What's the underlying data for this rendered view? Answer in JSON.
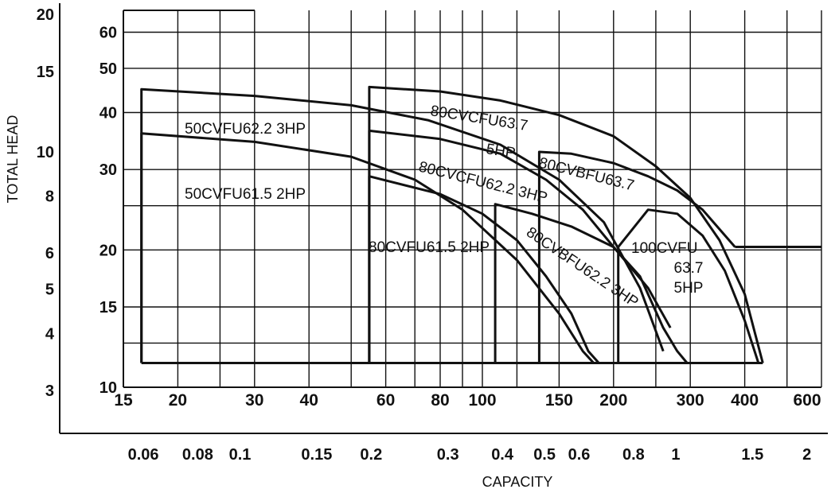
{
  "chart_data": {
    "type": "line",
    "title": "",
    "xlabel": "CAPACITY",
    "ylabel": "TOTAL HEAD",
    "x_scale": "log",
    "y_scale": "log",
    "xlim": [
      15,
      600
    ],
    "ylim": [
      10,
      67
    ],
    "grid": true,
    "x_ticks_primary": [
      "15",
      "20",
      "30",
      "40",
      "60",
      "80",
      "100",
      "150",
      "200",
      "300",
      "400",
      "600"
    ],
    "x_ticks_primary_values": [
      15,
      20,
      30,
      40,
      60,
      80,
      100,
      150,
      200,
      300,
      400,
      600
    ],
    "x_ticks_secondary": [
      "0.06",
      "0.08",
      "0.1",
      "0.15",
      "0.2",
      "0.3",
      "0.4",
      "0.5",
      "0.6",
      "0.8",
      "1",
      "1.5",
      "2"
    ],
    "x_ticks_secondary_values": [
      16.67,
      22.22,
      27.78,
      41.67,
      55.56,
      83.33,
      111.11,
      138.89,
      166.67,
      222.22,
      277.78,
      416.67,
      555.56
    ],
    "y_ticks_primary": [
      "10",
      "15",
      "20",
      "30",
      "40",
      "50",
      "60"
    ],
    "y_ticks_primary_values": [
      10,
      15,
      20,
      30,
      40,
      50,
      60
    ],
    "y_ticks_secondary": [
      "3",
      "4",
      "5",
      "6",
      "8",
      "10",
      "15",
      "20"
    ],
    "y_ticks_secondary_values": [
      9.84,
      13.12,
      16.4,
      19.69,
      26.25,
      32.81,
      49.21,
      65.62
    ],
    "series": [
      {
        "name": "50CVFU62.2 3HP",
        "label_text": "50CVFU62.2 3HP",
        "x": [
          16.5,
          30,
          50,
          75,
          110,
          150,
          190,
          230,
          260
        ],
        "y": [
          45,
          43.5,
          41.5,
          38.5,
          34,
          28.5,
          23,
          16.5,
          12
        ]
      },
      {
        "name": "50CVFU61.5 2HP",
        "label_text": "50CVFU61.5 2HP",
        "x": [
          16.5,
          30,
          50,
          70,
          90,
          120,
          150,
          170,
          180
        ],
        "y": [
          36,
          34.5,
          32,
          28.5,
          24.5,
          19,
          14.5,
          12,
          11.3
        ]
      },
      {
        "name": "80CVCFU63.7 5HP",
        "label_text": "80CVCFU63.7 5HP",
        "x": [
          55,
          80,
          110,
          150,
          200,
          250,
          300,
          350,
          400,
          440
        ],
        "y": [
          45.5,
          44.5,
          42.5,
          39.5,
          35.5,
          30.5,
          26,
          21,
          16,
          11.3
        ]
      },
      {
        "name": "80CVCFU62.2 3HP",
        "label_text": "80CVCFU62.2 3HP",
        "x": [
          55,
          80,
          110,
          140,
          170,
          200,
          230,
          260,
          280,
          295
        ],
        "y": [
          36.5,
          35,
          32.5,
          28.5,
          24.5,
          20.3,
          17.5,
          13.5,
          12,
          11.3
        ]
      },
      {
        "name": "80CVFU61.5 2HP",
        "label_text": "80CVFU61.5 2HP",
        "x": [
          55,
          80,
          100,
          120,
          140,
          160,
          175,
          185
        ],
        "y": [
          29,
          26.5,
          24,
          21,
          17.5,
          14.5,
          12,
          11.3
        ]
      },
      {
        "name": "80CVBFU63.7",
        "label_text": "80CVBFU63.7",
        "x": [
          135,
          160,
          200,
          240,
          280,
          320,
          380
        ],
        "y": [
          32.8,
          32.5,
          31,
          29,
          27,
          24.5,
          20.3
        ]
      },
      {
        "name": "80CVBFU62.2 3HP",
        "label_text": "80CVBFU62.2 3HP",
        "x": [
          107,
          130,
          160,
          200,
          240,
          270
        ],
        "y": [
          25.2,
          24,
          22.5,
          20.3,
          16.5,
          13.5
        ]
      },
      {
        "name": "100CVFU 63.7 5HP",
        "label_text": [
          "100CVFU",
          "63.7",
          "5HP"
        ],
        "x": [
          205,
          240,
          280,
          320,
          360,
          400,
          430
        ],
        "y": [
          20.3,
          24.5,
          24,
          21.5,
          18,
          14,
          11.3
        ]
      }
    ]
  }
}
